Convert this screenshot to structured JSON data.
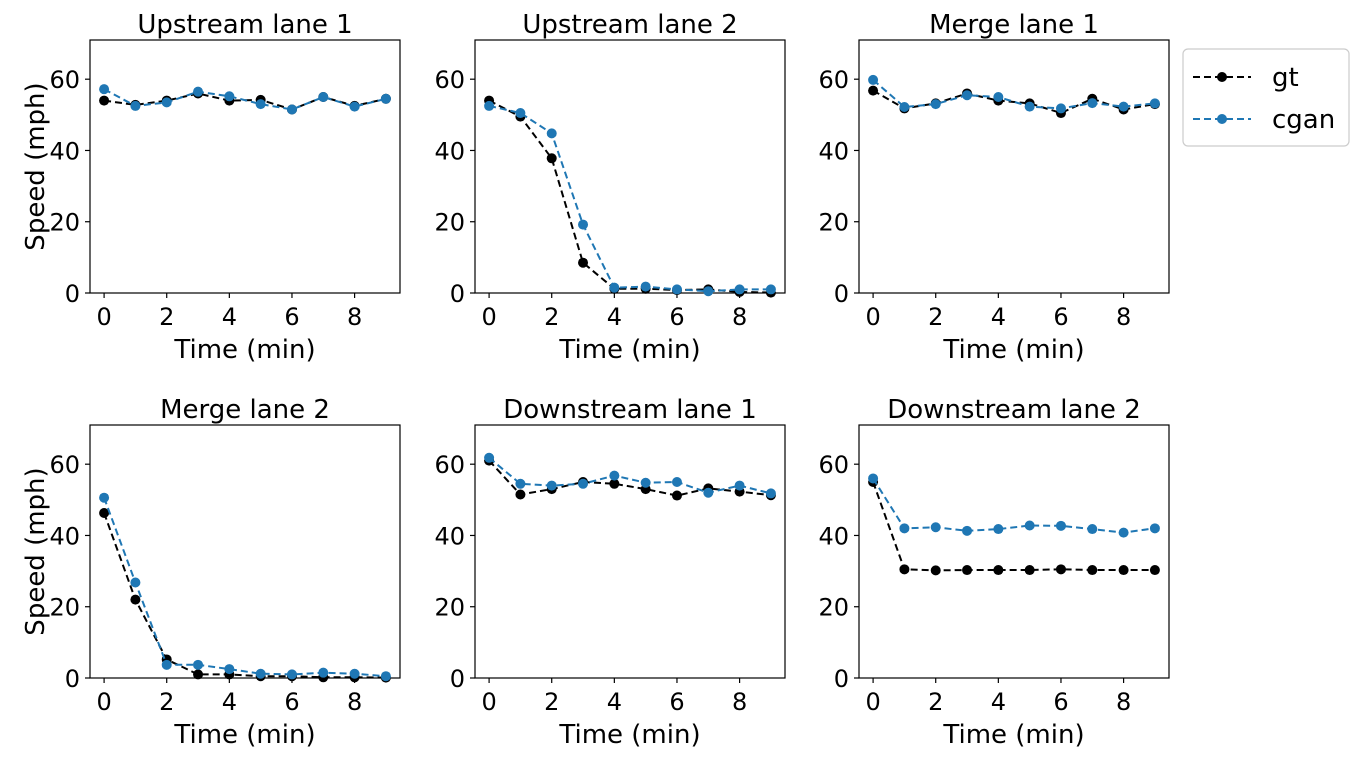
{
  "legend": {
    "placement": "outside-top-right",
    "entries": [
      {
        "name": "gt",
        "color": "#000000"
      },
      {
        "name": "cgan",
        "color": "#1f77b4"
      }
    ]
  },
  "chart_data": [
    {
      "type": "line",
      "title": "Upstream lane 1",
      "xlabel": "Time (min)",
      "ylabel": "Speed (mph)",
      "xlim": [
        -0.45,
        9.45
      ],
      "ylim": [
        0,
        71
      ],
      "xticks": [
        0,
        2,
        4,
        6,
        8
      ],
      "yticks": [
        0,
        20,
        40,
        60
      ],
      "x": [
        0,
        1,
        2,
        3,
        4,
        5,
        6,
        7,
        8,
        9
      ],
      "series": [
        {
          "name": "gt",
          "color": "#000000",
          "values": [
            54,
            52.8,
            54,
            56,
            54,
            54.2,
            51.5,
            55,
            52.5,
            54.5
          ]
        },
        {
          "name": "cgan",
          "color": "#1f77b4",
          "values": [
            57.2,
            52.5,
            53.5,
            56.5,
            55.2,
            53,
            51.5,
            55,
            52.3,
            54.5
          ]
        }
      ]
    },
    {
      "type": "line",
      "title": "Upstream lane 2",
      "xlabel": "Time (min)",
      "ylabel": "",
      "xlim": [
        -0.45,
        9.45
      ],
      "ylim": [
        0,
        71
      ],
      "xticks": [
        0,
        2,
        4,
        6,
        8
      ],
      "yticks": [
        0,
        20,
        40,
        60
      ],
      "x": [
        0,
        1,
        2,
        3,
        4,
        5,
        6,
        7,
        8,
        9
      ],
      "series": [
        {
          "name": "gt",
          "color": "#000000",
          "values": [
            54,
            49.5,
            37.8,
            8.5,
            1.2,
            1.2,
            0.8,
            1,
            0.3,
            0.1
          ]
        },
        {
          "name": "cgan",
          "color": "#1f77b4",
          "values": [
            52.5,
            50.5,
            44.8,
            19.2,
            1.5,
            1.8,
            1,
            0.5,
            1,
            1
          ]
        }
      ]
    },
    {
      "type": "line",
      "title": "Merge lane 1",
      "xlabel": "Time (min)",
      "ylabel": "",
      "xlim": [
        -0.45,
        9.45
      ],
      "ylim": [
        0,
        71
      ],
      "xticks": [
        0,
        2,
        4,
        6,
        8
      ],
      "yticks": [
        0,
        20,
        40,
        60
      ],
      "x": [
        0,
        1,
        2,
        3,
        4,
        5,
        6,
        7,
        8,
        9
      ],
      "series": [
        {
          "name": "gt",
          "color": "#000000",
          "values": [
            56.8,
            51.8,
            53.2,
            56,
            54,
            53.2,
            50.5,
            54.5,
            51.5,
            53
          ]
        },
        {
          "name": "cgan",
          "color": "#1f77b4",
          "values": [
            59.8,
            52.2,
            53,
            55.5,
            55,
            52.3,
            51.8,
            53.3,
            52.3,
            53.2
          ]
        }
      ]
    },
    {
      "type": "line",
      "title": "Merge lane 2",
      "xlabel": "Time (min)",
      "ylabel": "Speed (mph)",
      "xlim": [
        -0.45,
        9.45
      ],
      "ylim": [
        0,
        71
      ],
      "xticks": [
        0,
        2,
        4,
        6,
        8
      ],
      "yticks": [
        0,
        20,
        40,
        60
      ],
      "x": [
        0,
        1,
        2,
        3,
        4,
        5,
        6,
        7,
        8,
        9
      ],
      "series": [
        {
          "name": "gt",
          "color": "#000000",
          "values": [
            46.3,
            22,
            5.2,
            1,
            1,
            0.5,
            0.5,
            0.2,
            0.2,
            0.1
          ]
        },
        {
          "name": "cgan",
          "color": "#1f77b4",
          "values": [
            50.6,
            26.8,
            3.7,
            3.7,
            2.5,
            1.2,
            1,
            1.5,
            1.2,
            0.5
          ]
        }
      ]
    },
    {
      "type": "line",
      "title": "Downstream lane 1",
      "xlabel": "Time (min)",
      "ylabel": "",
      "xlim": [
        -0.45,
        9.45
      ],
      "ylim": [
        0,
        71
      ],
      "xticks": [
        0,
        2,
        4,
        6,
        8
      ],
      "yticks": [
        0,
        20,
        40,
        60
      ],
      "x": [
        0,
        1,
        2,
        3,
        4,
        5,
        6,
        7,
        8,
        9
      ],
      "series": [
        {
          "name": "gt",
          "color": "#000000",
          "values": [
            61,
            51.5,
            53,
            55,
            54.5,
            53,
            51.2,
            53.2,
            52.3,
            51.3
          ]
        },
        {
          "name": "cgan",
          "color": "#1f77b4",
          "values": [
            61.8,
            54.5,
            54,
            54.5,
            56.8,
            54.8,
            55,
            52,
            54,
            51.8
          ]
        }
      ]
    },
    {
      "type": "line",
      "title": "Downstream lane 2",
      "xlabel": "Time (min)",
      "ylabel": "",
      "xlim": [
        -0.45,
        9.45
      ],
      "ylim": [
        0,
        71
      ],
      "xticks": [
        0,
        2,
        4,
        6,
        8
      ],
      "yticks": [
        0,
        20,
        40,
        60
      ],
      "x": [
        0,
        1,
        2,
        3,
        4,
        5,
        6,
        7,
        8,
        9
      ],
      "series": [
        {
          "name": "gt",
          "color": "#000000",
          "values": [
            55,
            30.5,
            30.2,
            30.3,
            30.3,
            30.3,
            30.5,
            30.3,
            30.3,
            30.3
          ]
        },
        {
          "name": "cgan",
          "color": "#1f77b4",
          "values": [
            56,
            42,
            42.3,
            41.3,
            41.8,
            42.8,
            42.7,
            41.8,
            40.8,
            42
          ]
        }
      ]
    }
  ]
}
